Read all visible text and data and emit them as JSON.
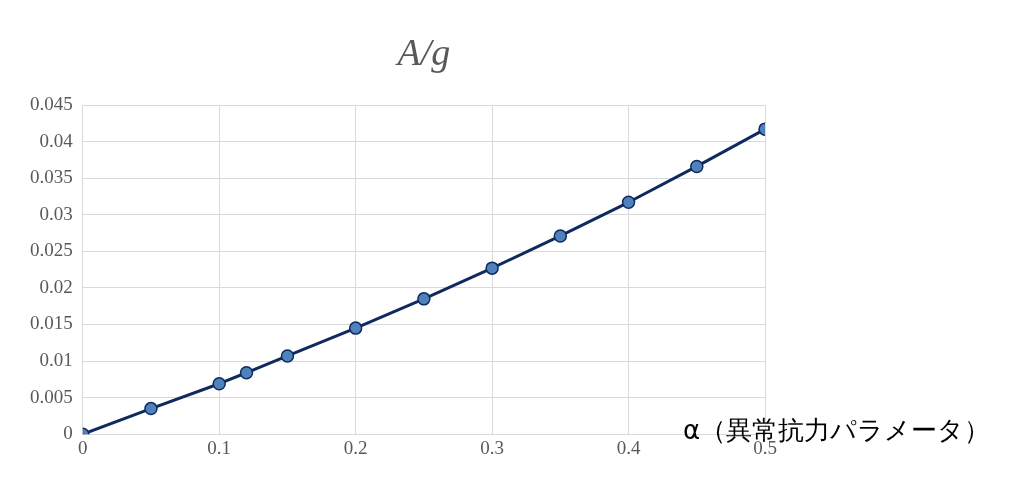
{
  "chart_data": {
    "type": "line",
    "title": "A/g",
    "xlabel": "α（異常抗力パラメータ）",
    "x": [
      0,
      0.05,
      0.1,
      0.12,
      0.15,
      0.2,
      0.25,
      0.3,
      0.35,
      0.4,
      0.45,
      0.5
    ],
    "series": [
      {
        "color": "#0f2a5e",
        "values": [
          0,
          0.0035,
          0.0069,
          0.0084,
          0.0107,
          0.0145,
          0.0185,
          0.0227,
          0.0271,
          0.0317,
          0.0366,
          0.0417
        ]
      }
    ],
    "xlim": [
      0,
      0.5
    ],
    "xticks": [
      0,
      0.1,
      0.2,
      0.3,
      0.4,
      0.5
    ],
    "ylim": [
      0,
      0.045
    ],
    "yticks": [
      0,
      0.005,
      0.01,
      0.015,
      0.02,
      0.025,
      0.03,
      0.035,
      0.04,
      0.045
    ],
    "grid": true,
    "marker": "circle",
    "legend": false
  }
}
